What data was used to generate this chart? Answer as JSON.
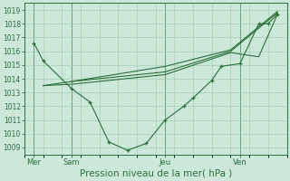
{
  "bg_color": "#cce8d8",
  "grid_color": "#99ccaa",
  "line_color": "#2d6e3e",
  "xlabel": "Pression niveau de la mer( hPa )",
  "xlabel_fontsize": 7.5,
  "ylim": [
    1008.5,
    1019.5
  ],
  "yticks": [
    1009,
    1010,
    1011,
    1012,
    1013,
    1014,
    1015,
    1016,
    1017,
    1018,
    1019
  ],
  "xlim": [
    0,
    14
  ],
  "xtick_positions": [
    0.5,
    2.5,
    7.5,
    11.5
  ],
  "xtick_labels": [
    "Mer",
    "Sam",
    "Jeu",
    "Ven"
  ],
  "day_vlines": [
    0.5,
    2.5,
    7.5,
    11.5
  ],
  "series1_x": [
    0.5,
    1.0,
    2.5,
    3.5,
    4.5,
    5.5,
    6.5,
    7.5,
    8.5,
    9.0,
    10.0,
    10.5,
    11.5,
    12.5,
    13.0,
    13.5
  ],
  "series1_y": [
    1016.6,
    1015.3,
    1013.3,
    1012.3,
    1009.4,
    1008.8,
    1009.3,
    1011.0,
    1012.0,
    1012.6,
    1013.9,
    1014.9,
    1015.1,
    1018.0,
    1018.0,
    1018.7
  ],
  "series2_x": [
    1.0,
    2.5,
    7.5,
    11.0,
    12.5,
    13.5
  ],
  "series2_y": [
    1013.5,
    1013.6,
    1014.3,
    1015.9,
    1015.6,
    1018.7
  ],
  "series3_x": [
    1.0,
    2.5,
    7.5,
    11.0,
    13.5
  ],
  "series3_y": [
    1013.5,
    1013.8,
    1014.5,
    1016.0,
    1018.8
  ],
  "series4_x": [
    2.5,
    7.5,
    11.0,
    13.5
  ],
  "series4_y": [
    1013.8,
    1014.9,
    1016.1,
    1018.9
  ]
}
